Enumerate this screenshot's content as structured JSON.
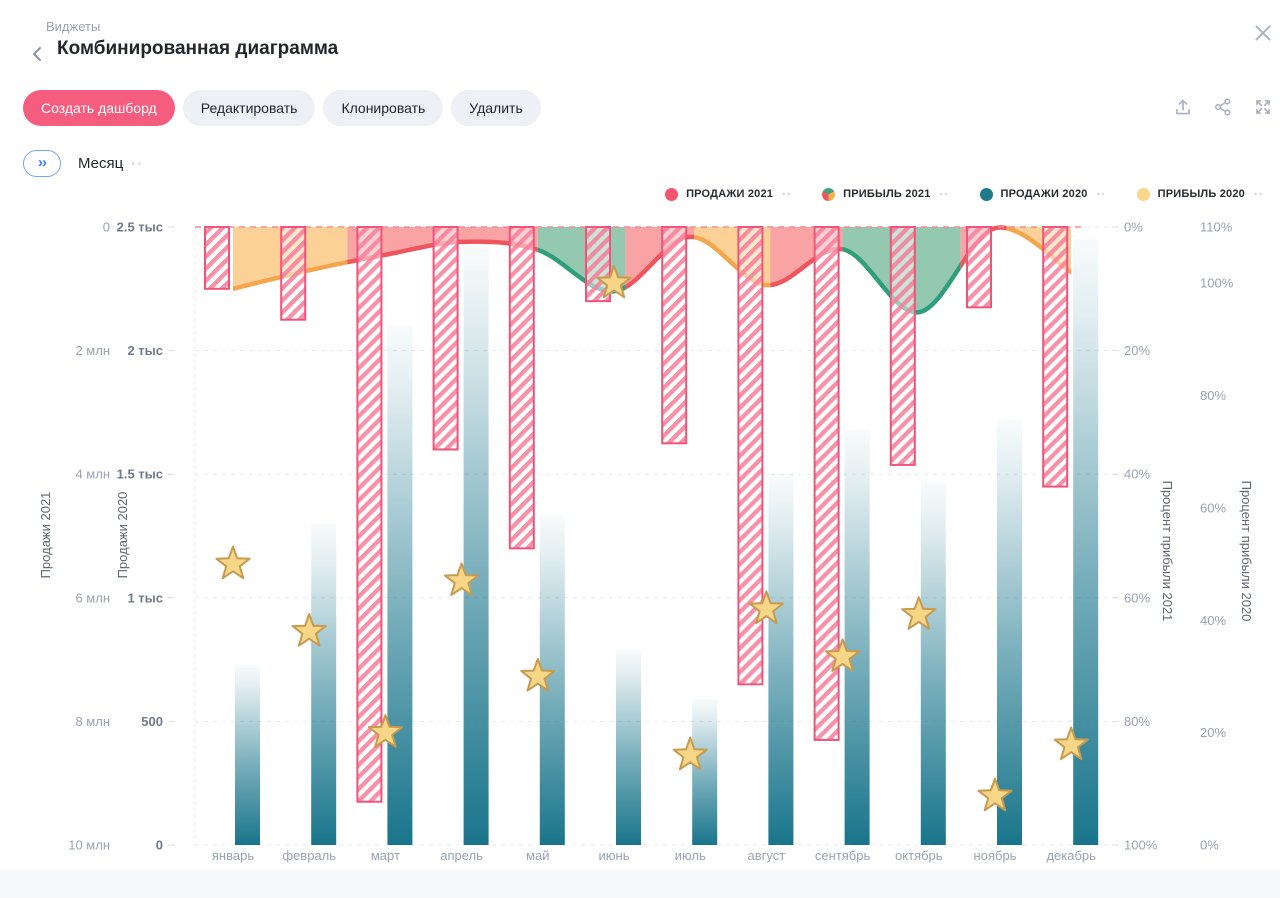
{
  "header": {
    "breadcrumb": "Виджеты",
    "title": "Комбинированная диаграмма"
  },
  "toolbar": {
    "buttons": [
      {
        "label": "Создать дашборд",
        "variant": "primary"
      },
      {
        "label": "Редактировать",
        "variant": "gray"
      },
      {
        "label": "Клонировать",
        "variant": "gray"
      },
      {
        "label": "Удалить",
        "variant": "gray"
      }
    ],
    "icons": [
      "export-icon",
      "share-icon",
      "fullscreen-icon"
    ]
  },
  "filter": {
    "expand_glyph": "››",
    "label": "Месяц"
  },
  "ui": {
    "dots": "··"
  },
  "legend": [
    {
      "label": "ПРОДАЖИ 2021",
      "type": "circle",
      "color": "#f4566e"
    },
    {
      "label": "ПРИБЫЛЬ 2021",
      "type": "pie",
      "colors": [
        "#3fa47e",
        "#f6b04e",
        "#ef555d"
      ]
    },
    {
      "label": "ПРОДАЖИ 2020",
      "type": "circle",
      "color": "#1e7a8e"
    },
    {
      "label": "ПРИБЫЛЬ 2020",
      "type": "circle",
      "color": "#f9d689"
    }
  ],
  "chart_data": {
    "type": "combo",
    "categories": [
      "январь",
      "февраль",
      "март",
      "апрель",
      "май",
      "июнь",
      "июль",
      "август",
      "сентябрь",
      "октябрь",
      "ноябрь",
      "декабрь"
    ],
    "series": [
      {
        "name": "ПРОДАЖИ 2021",
        "type": "bar",
        "style": "pink-hatched",
        "axis": "left1",
        "unit": "млн",
        "values": [
          1.0,
          1.5,
          9.3,
          3.6,
          5.2,
          1.2,
          3.5,
          7.4,
          8.3,
          3.85,
          1.3,
          4.2
        ]
      },
      {
        "name": "ПРИБЫЛЬ 2021",
        "type": "area",
        "style": "multicolor-zones",
        "axis": "right1",
        "unit": "%",
        "values": [
          10,
          7,
          4.5,
          2.4,
          3.7,
          10.4,
          1.6,
          9.4,
          3.6,
          13.8,
          0.2,
          7.3
        ],
        "segments": [
          {
            "from": 0,
            "to": 1.5,
            "zone": "orange"
          },
          {
            "from": 1.5,
            "to": 4,
            "zone": "red"
          },
          {
            "from": 4,
            "to": 5.15,
            "zone": "green"
          },
          {
            "from": 5.15,
            "to": 6.05,
            "zone": "red"
          },
          {
            "from": 6.05,
            "to": 7.05,
            "zone": "orange"
          },
          {
            "from": 7.05,
            "to": 8,
            "zone": "red"
          },
          {
            "from": 8,
            "to": 9.55,
            "zone": "green"
          },
          {
            "from": 9.55,
            "to": 10.15,
            "zone": "red"
          },
          {
            "from": 10.15,
            "to": 11,
            "zone": "orange"
          }
        ]
      },
      {
        "name": "ПРОДАЖИ 2020",
        "type": "bar",
        "style": "teal-gradient",
        "axis": "left2",
        "unit": "тыс",
        "values": [
          730,
          1300,
          2100,
          2420,
          1335,
          790,
          590,
          1500,
          1680,
          1470,
          1720,
          2450
        ]
      },
      {
        "name": "ПРИБЫЛЬ 2020",
        "type": "scatter-star",
        "axis": "right2",
        "unit": "%",
        "values": [
          50,
          38,
          20,
          47,
          30,
          100,
          16,
          42,
          33.5,
          41,
          8.7,
          17.8
        ]
      }
    ],
    "axes": {
      "left1": {
        "title": "Продажи 2021",
        "ticks": [
          "0",
          "2 млн",
          "4 млн",
          "6 млн",
          "8 млн",
          "10 млн"
        ],
        "range": [
          0,
          10
        ],
        "inverted": true
      },
      "left2": {
        "title": "Продажи 2020",
        "ticks": [
          "2.5 тыс",
          "2 тыс",
          "1.5 тыс",
          "1 тыс",
          "500",
          "0"
        ],
        "range": [
          0,
          2500
        ],
        "inverted": false
      },
      "right1": {
        "title": "Процент прибыли 2021",
        "ticks": [
          "0%",
          "20%",
          "40%",
          "60%",
          "80%",
          "100%"
        ],
        "range": [
          0,
          100
        ],
        "inverted": true
      },
      "right2": {
        "title": "Процент прибыли 2020",
        "ticks": [
          "110%",
          "100%",
          "80%",
          "60%",
          "40%",
          "20%",
          "0%"
        ],
        "tick_values": [
          110,
          100,
          80,
          60,
          40,
          20,
          0
        ],
        "range": [
          0,
          110
        ],
        "inverted": false
      }
    },
    "colors": {
      "bar2021_border": "#f2537b",
      "bar2021_stripe": "rgba(247,125,153,0.85)",
      "bar2020_teal": "#19758b",
      "zone_red_line": "#ef555d",
      "zone_red_fill": "rgba(248,147,149,0.85)",
      "zone_green_line": "#2e9e7b",
      "zone_green_fill": "rgba(129,190,163,0.85)",
      "zone_orange_line": "#f5a54b",
      "zone_orange_fill": "rgba(250,201,134,0.85)",
      "star_fill": "#f8d687",
      "star_stroke": "#c79b4f",
      "grid": "#e5e9ef",
      "tick_dash": "#d8dde5",
      "axis_text": "#98a2b3",
      "axis_text_bold": "#6f7b8c",
      "top_dashed_line": "#f58a8e"
    },
    "grid": {
      "horizontal": "dashed",
      "vertical_left_edge": "dashed"
    },
    "legend_position": "top-right"
  }
}
